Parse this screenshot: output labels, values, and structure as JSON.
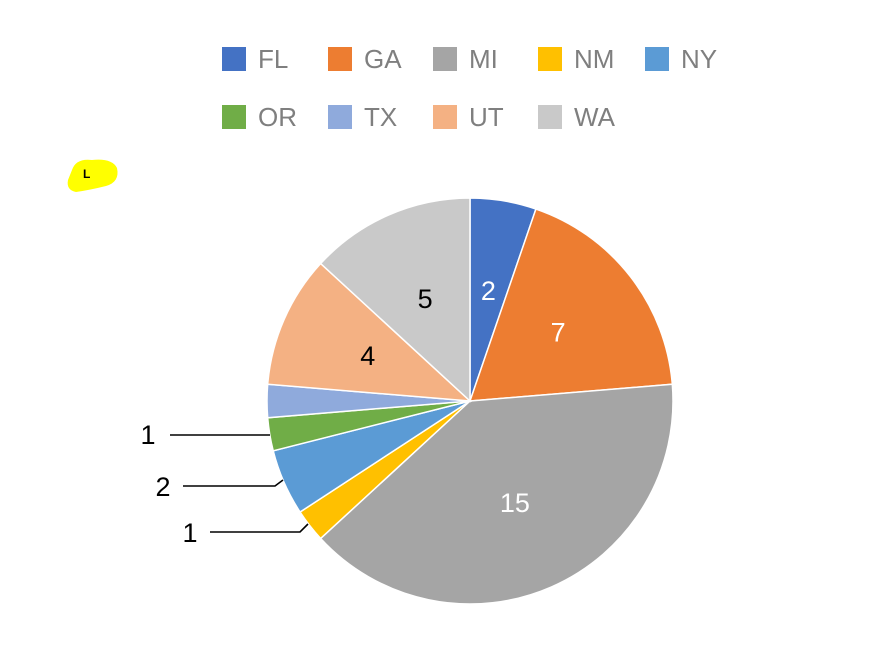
{
  "chart_data": {
    "type": "pie",
    "categories": [
      "FL",
      "GA",
      "MI",
      "NM",
      "NY",
      "OR",
      "TX",
      "UT",
      "WA"
    ],
    "values": [
      2,
      7,
      15,
      1,
      2,
      1,
      1,
      4,
      5
    ],
    "colors": [
      "#4472c4",
      "#ed7d31",
      "#a5a5a5",
      "#ffc000",
      "#5b9bd5",
      "#70ad47",
      "#8faadc",
      "#f4b183",
      "#c9c9c9"
    ],
    "label_colors": [
      "#ffffff",
      "#ffffff",
      "#ffffff",
      "#000000",
      "#000000",
      "#000000",
      "#000000",
      "#000000",
      "#000000"
    ],
    "legend_placement": "top",
    "start_angle": "12 o'clock",
    "direction": "clockwise",
    "title": ""
  },
  "annotation": {
    "highlight_color": "#ffff00",
    "mark_text": "L"
  }
}
